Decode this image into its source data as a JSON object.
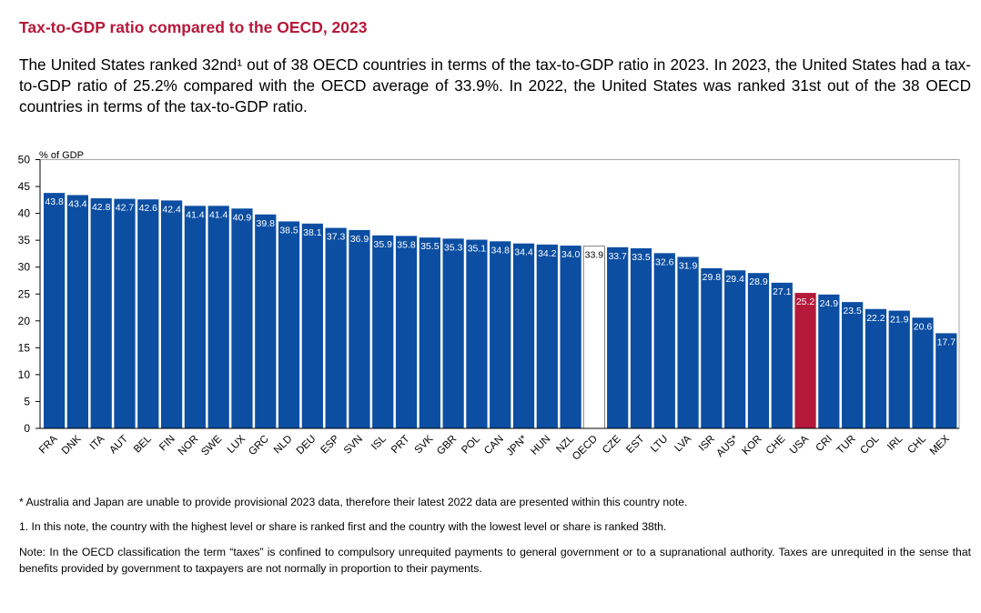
{
  "page": {
    "title": "Tax-to-GDP ratio compared to the OECD, 2023",
    "intro": "The United States ranked 32nd¹ out of 38 OECD countries in terms of the tax-to-GDP ratio in 2023. In 2023, the United States had a tax-to-GDP ratio of 25.2% compared with the OECD average of 33.9%. In 2022, the United States was ranked 31st out of the 38 OECD countries in terms of the tax-to-GDP ratio.",
    "notes": [
      "* Australia and Japan are unable to provide provisional 2023 data, therefore their latest 2022 data are presented within this country note.",
      "1. In this note, the country with the highest level or share is ranked first and the country with the lowest level or share is ranked 38th.",
      "Note: In the OECD classification the term “taxes” is confined to compulsory unrequited payments to general government or to a supranational authority. Taxes are unrequited in the sense that benefits provided by government to taxpayers are not normally in proportion to their payments."
    ]
  },
  "colors": {
    "bar": "#0b4ea2",
    "highlight": "#b5193a",
    "average_fill": "#ffffff",
    "average_stroke": "#808080",
    "title": "#b5193a"
  },
  "chart_data": {
    "type": "bar",
    "ylabel": "% of GDP",
    "ylim": [
      0,
      50
    ],
    "yticks": [
      0,
      5,
      10,
      15,
      20,
      25,
      30,
      35,
      40,
      45,
      50
    ],
    "grid": false,
    "highlight": "USA",
    "average": "OECD",
    "categories": [
      "FRA",
      "DNK",
      "ITA",
      "AUT",
      "BEL",
      "FIN",
      "NOR",
      "SWE",
      "LUX",
      "GRC",
      "NLD",
      "DEU",
      "ESP",
      "SVN",
      "ISL",
      "PRT",
      "SVK",
      "GBR",
      "POL",
      "CAN",
      "JPN*",
      "HUN",
      "NZL",
      "OECD",
      "CZE",
      "EST",
      "LTU",
      "LVA",
      "ISR",
      "AUS*",
      "KOR",
      "CHE",
      "USA",
      "CRI",
      "TUR",
      "COL",
      "IRL",
      "CHL",
      "MEX"
    ],
    "values": [
      43.8,
      43.4,
      42.8,
      42.7,
      42.6,
      42.4,
      41.4,
      41.4,
      40.9,
      39.8,
      38.5,
      38.1,
      37.3,
      36.9,
      35.9,
      35.8,
      35.5,
      35.3,
      35.1,
      34.8,
      34.4,
      34.2,
      34.0,
      33.9,
      33.7,
      33.5,
      32.6,
      31.9,
      29.8,
      29.4,
      28.9,
      27.1,
      25.2,
      24.9,
      23.5,
      22.2,
      21.9,
      20.6,
      17.7
    ]
  }
}
